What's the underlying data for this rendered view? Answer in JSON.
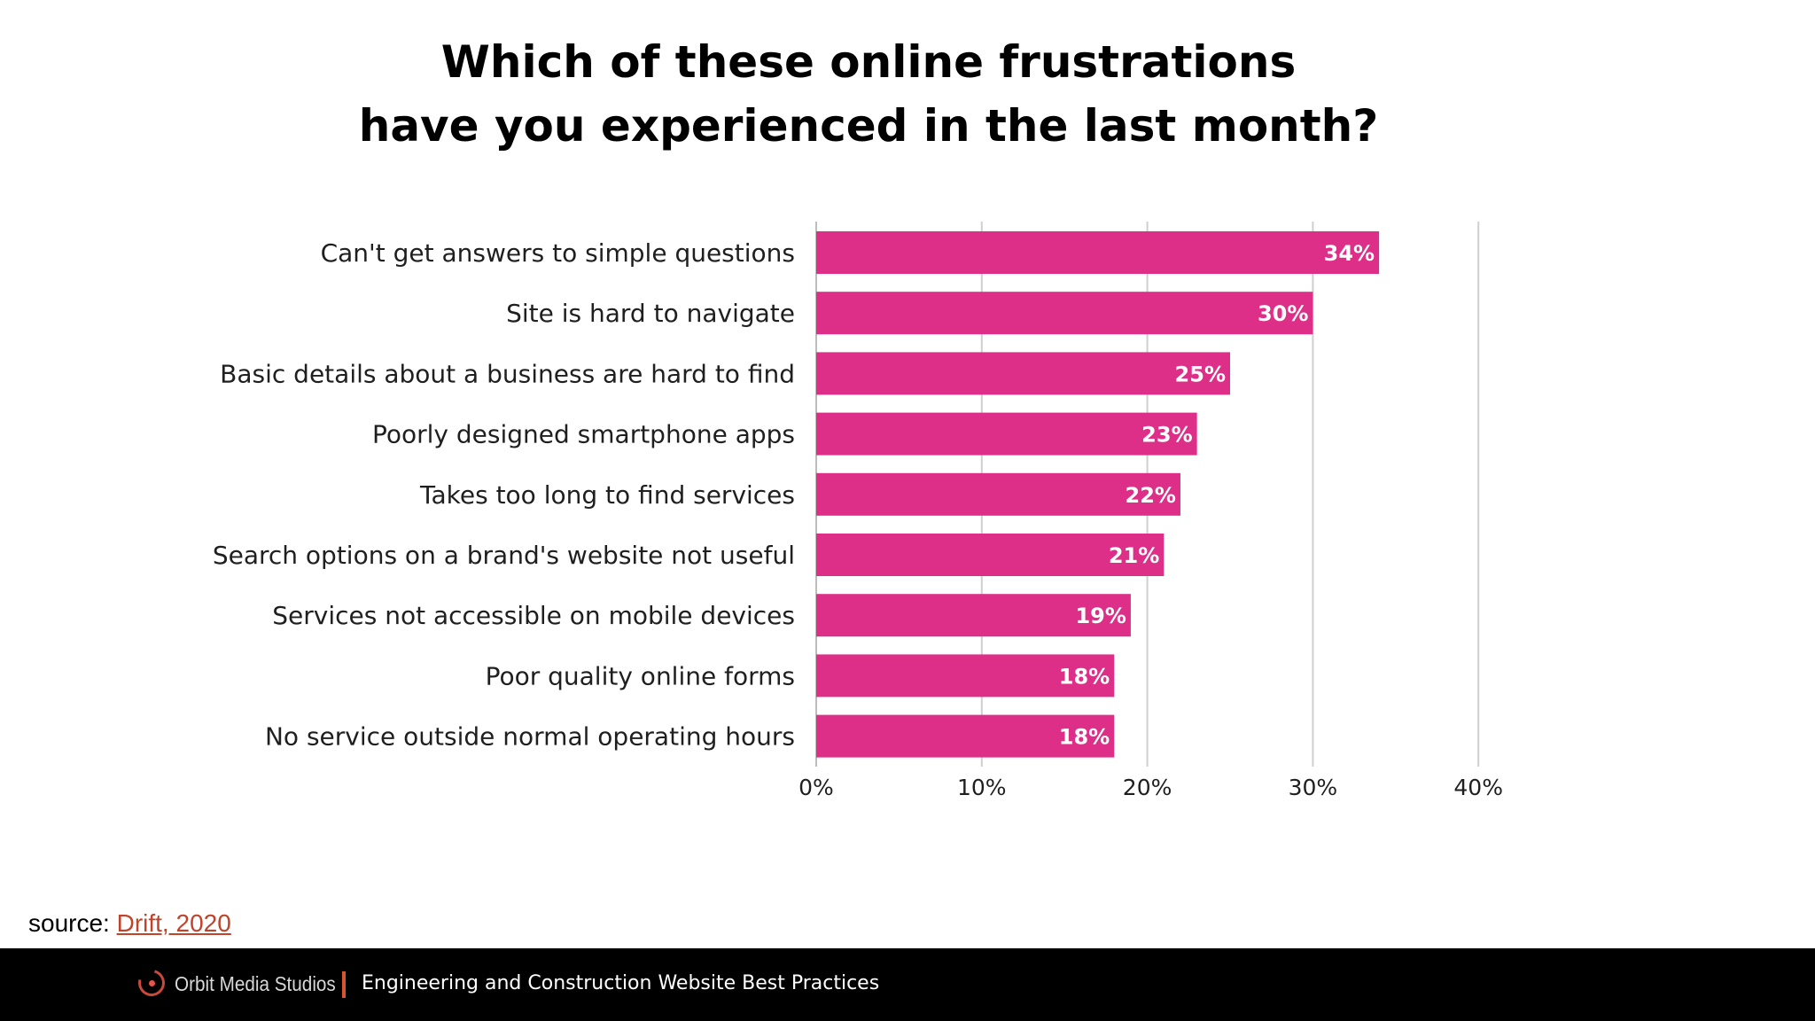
{
  "title_lines": [
    "Which of these online frustrations",
    "have you experienced in the last month?"
  ],
  "chart_data": {
    "type": "bar",
    "orientation": "horizontal",
    "categories": [
      "Can't get answers to simple questions",
      "Site is hard to navigate",
      "Basic details about a business are hard to find",
      "Poorly designed smartphone apps",
      "Takes too long to find services",
      "Search options on a brand's website not useful",
      "Services not accessible on mobile devices",
      "Poor quality online forms",
      "No service outside normal operating hours"
    ],
    "values": [
      34,
      30,
      25,
      23,
      22,
      21,
      19,
      18,
      18
    ],
    "value_labels": [
      "34%",
      "30%",
      "25%",
      "23%",
      "22%",
      "21%",
      "19%",
      "18%",
      "18%"
    ],
    "xlim": [
      0,
      40
    ],
    "x_ticks": [
      0,
      10,
      20,
      30,
      40
    ],
    "x_tick_labels": [
      "0%",
      "10%",
      "20%",
      "30%",
      "40%"
    ],
    "grid": true,
    "bar_color": "#dd2f87",
    "label_color": "#ffffff",
    "text_color": "#1f1f1f",
    "grid_color": "#cfcfcf"
  },
  "source": {
    "prefix": "source: ",
    "link_text": "Drift, 2020"
  },
  "footer": {
    "logo_text": "Orbit Media Studios",
    "text": "Engineering and Construction Website Best Practices",
    "logo_icon": "orbit-logo-icon"
  }
}
